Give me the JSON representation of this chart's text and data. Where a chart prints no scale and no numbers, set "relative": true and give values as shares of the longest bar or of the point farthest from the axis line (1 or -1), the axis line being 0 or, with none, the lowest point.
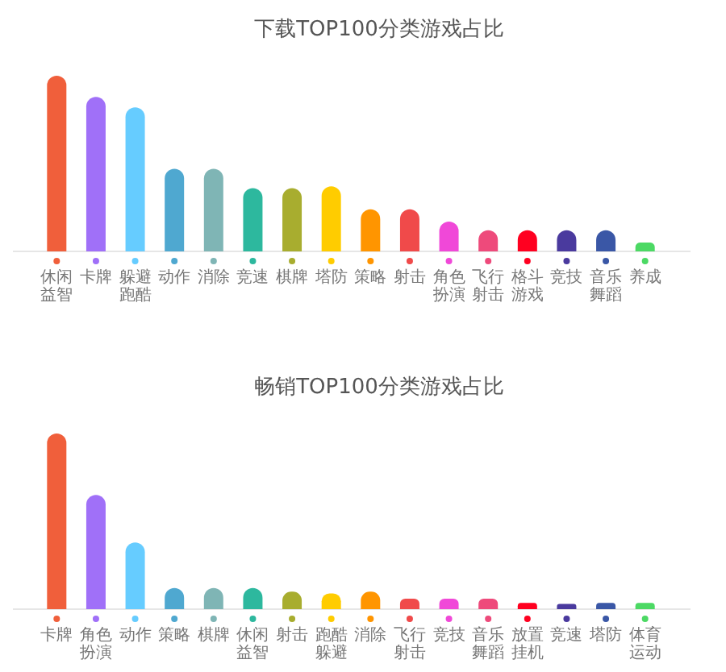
{
  "chart_data": [
    {
      "type": "bar",
      "title": "下载TOP100分类游戏占比",
      "relative": true,
      "categories": [
        "休闲益智",
        "卡牌",
        "躲避跑酷",
        "动作",
        "消除",
        "竞速",
        "棋牌",
        "塔防",
        "策略",
        "射击",
        "角色扮演",
        "飞行射击",
        "格斗游戏",
        "竞技",
        "音乐舞蹈",
        "养成"
      ],
      "values": [
        1,
        0.88,
        0.82,
        0.47,
        0.47,
        0.36,
        0.36,
        0.37,
        0.24,
        0.24,
        0.17,
        0.12,
        0.12,
        0.12,
        0.12,
        0.05
      ],
      "colors": [
        "#f05f3b",
        "#a070f8",
        "#66ccff",
        "#4fa8d0",
        "#7fb5b5",
        "#2db89e",
        "#a8ad2f",
        "#ffcc00",
        "#ff9500",
        "#f04a4a",
        "#f048d8",
        "#ee4a7b",
        "#ff0020",
        "#4a3a9e",
        "#3a57a6",
        "#4cd964"
      ]
    },
    {
      "type": "bar",
      "title": "畅销TOP100分类游戏占比",
      "relative": true,
      "categories": [
        "卡牌",
        "角色扮演",
        "动作",
        "策略",
        "棋牌",
        "休闲益智",
        "射击",
        "跑酷躲避",
        "消除",
        "飞行射击",
        "竞技",
        "音乐舞蹈",
        "放置挂机",
        "竞速",
        "塔防",
        "体育运动"
      ],
      "values": [
        1,
        0.65,
        0.38,
        0.12,
        0.12,
        0.12,
        0.1,
        0.09,
        0.1,
        0.06,
        0.06,
        0.06,
        0.035,
        0.03,
        0.035,
        0.035
      ],
      "colors": [
        "#f05f3b",
        "#a070f8",
        "#66ccff",
        "#4fa8d0",
        "#7fb5b5",
        "#2db89e",
        "#a8ad2f",
        "#ffcc00",
        "#ff9500",
        "#f04a4a",
        "#f048d8",
        "#ee4a7b",
        "#ff0020",
        "#4a3a9e",
        "#3a57a6",
        "#4cd964"
      ]
    }
  ]
}
